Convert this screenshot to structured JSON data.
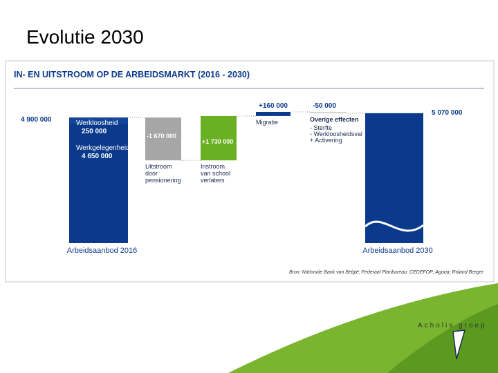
{
  "slide_title": "Evolutie 2030",
  "chart_data": {
    "type": "waterfall",
    "title": "IN- EN UITSTROOM OP DE ARBEIDSMARKT (2016 - 2030)",
    "categories": [
      "Arbeidsaanbod 2016",
      "Uitstroom door pensionering",
      "Instroom van school verlaters",
      "Migratie",
      "Overige effecten",
      "Arbeidsaanbod 2030"
    ],
    "values": [
      4900000,
      -1670000,
      1730000,
      160000,
      -50000,
      5070000
    ],
    "value_labels": [
      "4 900 000",
      "-1 670 000",
      "+1 730 000",
      "+160 000",
      "-50 000",
      "5 070 000"
    ],
    "colors": [
      "#0b3a8c",
      "#a6a6a6",
      "#6ab023",
      "#0b3a8c",
      "#d3d3d3",
      "#0b3a8c"
    ],
    "segments": [
      {
        "name": "Werkloosheid",
        "value": 250000,
        "value_label": "250 000",
        "color": "#14449a"
      },
      {
        "name": "Werkgelegenheid",
        "value": 4650000,
        "value_label": "4 650 000",
        "color": "#0b3a8c"
      }
    ],
    "notes": [
      "- Sterfte",
      "- Werkloosheidsval",
      "+ Activering"
    ],
    "source": "Bron: Nationale Bank van België; Federaal Planbureau; CEDEFOP; Agoria; Roland Berger"
  },
  "logo": "Acholis groep"
}
